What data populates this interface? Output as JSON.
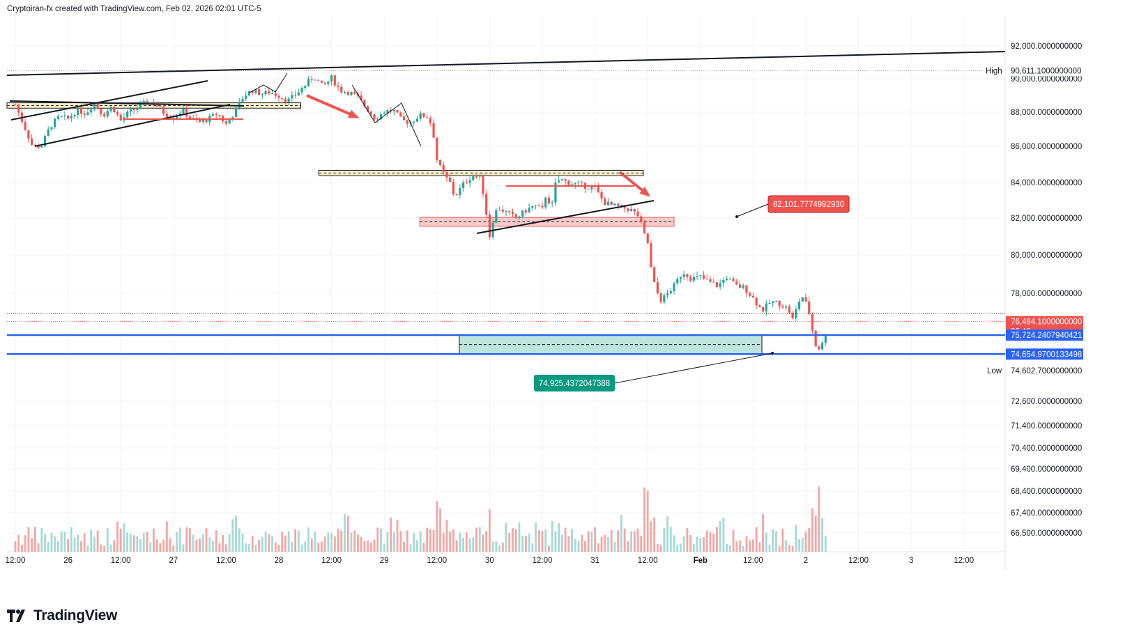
{
  "header": {
    "attribution": "Cryptoiran-fx created with TradingView.com, Feb 02, 2026 02:01 UTC-5"
  },
  "footer": {
    "brand": "TradingView",
    "logo_icon": "tradingview-logo-icon"
  },
  "colors": {
    "up": "#26a69a",
    "down": "#ef5350",
    "volume_up": "#a5dad5",
    "volume_down": "#f5a6a4",
    "zone_yellow": "#fff3c4",
    "zone_red": "#f9c2c2",
    "zone_green": "#b2e0d6",
    "level_blue": "#2962ff"
  },
  "chart_data": {
    "type": "candlestick",
    "symbol_interval": "",
    "ylim": [
      74300,
      93000
    ],
    "price_ticks": [
      "92,000.0000000000",
      "90,000.0000000000",
      "88,000.0000000000",
      "86,000.0000000000",
      "84,000.0000000000",
      "82,000.0000000000",
      "80,000.0000000000",
      "78,000.0000000000"
    ],
    "volume_ticks": [
      "72,600.0000000000",
      "71,400.0000000000",
      "70,400.0000000000",
      "69,400.0000000000",
      "68,400.0000000000",
      "67,400.0000000000",
      "66,500.0000000000"
    ],
    "time_ticks": [
      {
        "label": "12:00",
        "t": 0
      },
      {
        "label": "26",
        "t": 12
      },
      {
        "label": "12:00",
        "t": 24
      },
      {
        "label": "27",
        "t": 36
      },
      {
        "label": "12:00",
        "t": 48
      },
      {
        "label": "28",
        "t": 60
      },
      {
        "label": "12:00",
        "t": 72
      },
      {
        "label": "29",
        "t": 84
      },
      {
        "label": "12:00",
        "t": 96
      },
      {
        "label": "30",
        "t": 108
      },
      {
        "label": "12:00",
        "t": 120
      },
      {
        "label": "31",
        "t": 132
      },
      {
        "label": "12:00",
        "t": 144
      },
      {
        "label": "Feb",
        "t": 156
      },
      {
        "label": "12:00",
        "t": 168
      },
      {
        "label": "2",
        "t": 180
      },
      {
        "label": "12:00",
        "t": 192
      },
      {
        "label": "3",
        "t": 204
      },
      {
        "label": "12:00",
        "t": 216
      }
    ],
    "price_path": [
      [
        0,
        88700
      ],
      [
        2,
        87500
      ],
      [
        4,
        86300
      ],
      [
        6,
        86400
      ],
      [
        8,
        87500
      ],
      [
        10,
        88000
      ],
      [
        12,
        87900
      ],
      [
        14,
        88400
      ],
      [
        16,
        88200
      ],
      [
        18,
        88800
      ],
      [
        20,
        88100
      ],
      [
        22,
        88600
      ],
      [
        24,
        87800
      ],
      [
        26,
        88300
      ],
      [
        28,
        88500
      ],
      [
        30,
        88900
      ],
      [
        32,
        88700
      ],
      [
        34,
        88200
      ],
      [
        36,
        88000
      ],
      [
        38,
        88400
      ],
      [
        40,
        87900
      ],
      [
        42,
        87700
      ],
      [
        44,
        87900
      ],
      [
        46,
        88200
      ],
      [
        48,
        87600
      ],
      [
        50,
        88300
      ],
      [
        52,
        89200
      ],
      [
        54,
        89500
      ],
      [
        56,
        89300
      ],
      [
        58,
        89400
      ],
      [
        60,
        89200
      ],
      [
        62,
        88900
      ],
      [
        64,
        89300
      ],
      [
        66,
        89800
      ],
      [
        68,
        90300
      ],
      [
        70,
        89700
      ],
      [
        72,
        90200
      ],
      [
        74,
        89500
      ],
      [
        76,
        89400
      ],
      [
        78,
        89100
      ],
      [
        80,
        88500
      ],
      [
        82,
        87900
      ],
      [
        84,
        88300
      ],
      [
        86,
        88400
      ],
      [
        88,
        87800
      ],
      [
        90,
        87700
      ],
      [
        92,
        88100
      ],
      [
        94,
        88000
      ],
      [
        95,
        87400
      ],
      [
        96,
        85600
      ],
      [
        97,
        85000
      ],
      [
        98,
        84600
      ],
      [
        99,
        84300
      ],
      [
        100,
        83500
      ],
      [
        102,
        84200
      ],
      [
        104,
        84700
      ],
      [
        106,
        84600
      ],
      [
        107,
        83000
      ],
      [
        108,
        81300
      ],
      [
        109,
        82500
      ],
      [
        110,
        82900
      ],
      [
        112,
        82600
      ],
      [
        114,
        82300
      ],
      [
        116,
        82700
      ],
      [
        118,
        83000
      ],
      [
        120,
        82800
      ],
      [
        121,
        83800
      ],
      [
        122,
        82700
      ],
      [
        123,
        84200
      ],
      [
        124,
        84500
      ],
      [
        126,
        84300
      ],
      [
        128,
        84200
      ],
      [
        130,
        84100
      ],
      [
        132,
        84000
      ],
      [
        134,
        83200
      ],
      [
        136,
        83000
      ],
      [
        138,
        82900
      ],
      [
        140,
        82800
      ],
      [
        142,
        82400
      ],
      [
        143,
        81500
      ],
      [
        144,
        80900
      ],
      [
        145,
        79000
      ],
      [
        146,
        78200
      ],
      [
        147,
        77700
      ],
      [
        148,
        77900
      ],
      [
        150,
        78500
      ],
      [
        152,
        79300
      ],
      [
        154,
        78900
      ],
      [
        156,
        79000
      ],
      [
        158,
        78700
      ],
      [
        160,
        78500
      ],
      [
        162,
        79000
      ],
      [
        164,
        78500
      ],
      [
        166,
        78400
      ],
      [
        168,
        77800
      ],
      [
        170,
        77100
      ],
      [
        172,
        77600
      ],
      [
        174,
        77500
      ],
      [
        176,
        77200
      ],
      [
        177,
        76600
      ],
      [
        178,
        77300
      ],
      [
        179,
        78000
      ],
      [
        180,
        77500
      ],
      [
        181,
        76800
      ],
      [
        182,
        75200
      ],
      [
        183,
        75000
      ],
      [
        184,
        75300
      ],
      [
        185,
        76300
      ]
    ],
    "high": {
      "label": "High",
      "value": "90,611.1000000000",
      "price": 90611.1
    },
    "low": {
      "label": "Low",
      "value": "74,602.7000000000",
      "price": 74602.7
    },
    "last_price": {
      "value": "76,484.1000000000",
      "countdown": "28:46",
      "price": 76484.1
    },
    "levels": [
      {
        "value": "75,724.2407940421",
        "price": 75724.24
      },
      {
        "value": "74,654.9700133498",
        "price": 74654.97
      }
    ],
    "callouts": [
      {
        "value": "82,101.7774992930",
        "color": "#ef5350",
        "price": 82101.78
      },
      {
        "value": "74,925.4372047388",
        "color": "#089981",
        "price": 74925.44
      }
    ],
    "zones": [
      {
        "color": "yellow",
        "t0": 0,
        "t1": 65,
        "p0": 88500,
        "p1": 88800
      },
      {
        "color": "yellow",
        "t0": 71,
        "t1": 143,
        "p0": 84700,
        "p1": 85000
      },
      {
        "color": "red",
        "t0": 94,
        "t1": 150,
        "p0": 81850,
        "p1": 82350
      },
      {
        "color": "green",
        "t0": 103,
        "t1": 170,
        "p0": 74654.97,
        "p1": 75724.24
      }
    ]
  }
}
